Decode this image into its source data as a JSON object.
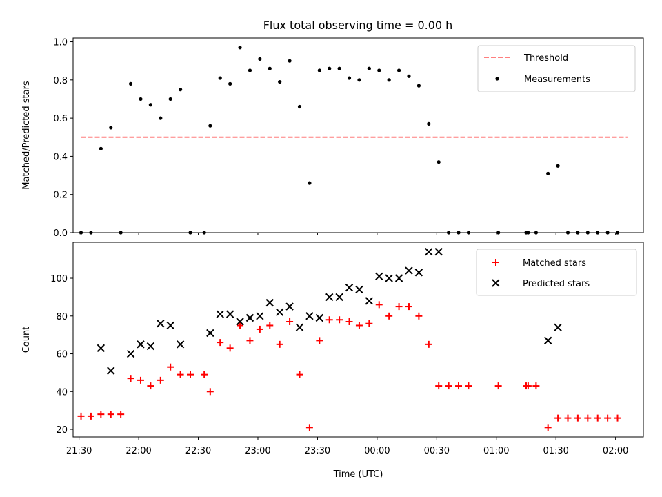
{
  "title": "Flux total observing time = 0.00 h",
  "chart_data": [
    {
      "type": "scatter",
      "ylabel": "Matched/Predicted stars",
      "xlim_min": [
        -3,
        284
      ],
      "ylim": [
        0.0,
        1.02
      ],
      "yticks": [
        "0.0",
        "0.2",
        "0.4",
        "0.6",
        "0.8",
        "1.0"
      ],
      "ytick_values": [
        0.0,
        0.2,
        0.4,
        0.6,
        0.8,
        1.0
      ],
      "legend_position": "top-right",
      "threshold": {
        "name": "Threshold",
        "y": 0.5,
        "x_range_min": [
          1,
          276
        ],
        "color": "#ff7f7f"
      },
      "series": [
        {
          "name": "Measurements",
          "color": "#000000",
          "marker": "dot",
          "points_min": [
            [
              1,
              0.0
            ],
            [
              6,
              0.0
            ],
            [
              11,
              0.44
            ],
            [
              16,
              0.55
            ],
            [
              21,
              0.0
            ],
            [
              26,
              0.78
            ],
            [
              31,
              0.7
            ],
            [
              36,
              0.67
            ],
            [
              41,
              0.6
            ],
            [
              46,
              0.7
            ],
            [
              51,
              0.75
            ],
            [
              56,
              0.0
            ],
            [
              63,
              0.0
            ],
            [
              66,
              0.56
            ],
            [
              71,
              0.81
            ],
            [
              76,
              0.78
            ],
            [
              81,
              0.97
            ],
            [
              86,
              0.85
            ],
            [
              91,
              0.91
            ],
            [
              96,
              0.86
            ],
            [
              101,
              0.79
            ],
            [
              106,
              0.9
            ],
            [
              111,
              0.66
            ],
            [
              116,
              0.26
            ],
            [
              121,
              0.85
            ],
            [
              126,
              0.86
            ],
            [
              131,
              0.86
            ],
            [
              136,
              0.81
            ],
            [
              141,
              0.8
            ],
            [
              146,
              0.86
            ],
            [
              151,
              0.85
            ],
            [
              156,
              0.8
            ],
            [
              161,
              0.85
            ],
            [
              166,
              0.82
            ],
            [
              171,
              0.77
            ],
            [
              176,
              0.57
            ],
            [
              181,
              0.37
            ],
            [
              186,
              0.0
            ],
            [
              191,
              0.0
            ],
            [
              196,
              0.0
            ],
            [
              211,
              0.0
            ],
            [
              225,
              0.0
            ],
            [
              226,
              0.0
            ],
            [
              230,
              0.0
            ],
            [
              236,
              0.31
            ],
            [
              241,
              0.35
            ],
            [
              246,
              0.0
            ],
            [
              251,
              0.0
            ],
            [
              256,
              0.0
            ],
            [
              261,
              0.0
            ],
            [
              266,
              0.0
            ],
            [
              271,
              0.0
            ]
          ]
        }
      ]
    },
    {
      "type": "scatter",
      "xlabel": "Time (UTC)",
      "ylabel": "Count",
      "xlim_min": [
        -3,
        284
      ],
      "ylim": [
        16,
        119
      ],
      "yticks": [
        "20",
        "40",
        "60",
        "80",
        "100"
      ],
      "ytick_values": [
        20,
        40,
        60,
        80,
        100
      ],
      "xtick_values_min": [
        0,
        30,
        60,
        90,
        120,
        150,
        180,
        210,
        240,
        270
      ],
      "xticks": [
        "21:30",
        "22:00",
        "22:30",
        "23:00",
        "23:30",
        "00:00",
        "00:30",
        "01:00",
        "01:30",
        "02:00"
      ],
      "legend_position": "top-right",
      "series": [
        {
          "name": "Matched stars",
          "color": "#ff0000",
          "marker": "plus",
          "points_min": [
            [
              1,
              27
            ],
            [
              6,
              27
            ],
            [
              11,
              28
            ],
            [
              16,
              28
            ],
            [
              21,
              28
            ],
            [
              26,
              47
            ],
            [
              31,
              46
            ],
            [
              36,
              43
            ],
            [
              41,
              46
            ],
            [
              46,
              53
            ],
            [
              51,
              49
            ],
            [
              56,
              49
            ],
            [
              63,
              49
            ],
            [
              66,
              40
            ],
            [
              71,
              66
            ],
            [
              76,
              63
            ],
            [
              81,
              75
            ],
            [
              86,
              67
            ],
            [
              91,
              73
            ],
            [
              96,
              75
            ],
            [
              101,
              65
            ],
            [
              106,
              77
            ],
            [
              111,
              49
            ],
            [
              116,
              21
            ],
            [
              121,
              67
            ],
            [
              126,
              78
            ],
            [
              131,
              78
            ],
            [
              136,
              77
            ],
            [
              141,
              75
            ],
            [
              146,
              76
            ],
            [
              151,
              86
            ],
            [
              156,
              80
            ],
            [
              161,
              85
            ],
            [
              166,
              85
            ],
            [
              171,
              80
            ],
            [
              176,
              65
            ],
            [
              181,
              43
            ],
            [
              186,
              43
            ],
            [
              191,
              43
            ],
            [
              196,
              43
            ],
            [
              211,
              43
            ],
            [
              225,
              43
            ],
            [
              226,
              43
            ],
            [
              230,
              43
            ],
            [
              236,
              21
            ],
            [
              241,
              26
            ],
            [
              246,
              26
            ],
            [
              251,
              26
            ],
            [
              256,
              26
            ],
            [
              261,
              26
            ],
            [
              266,
              26
            ],
            [
              271,
              26
            ]
          ]
        },
        {
          "name": "Predicted stars",
          "color": "#000000",
          "marker": "x",
          "points_min": [
            [
              11,
              63
            ],
            [
              16,
              51
            ],
            [
              26,
              60
            ],
            [
              31,
              65
            ],
            [
              36,
              64
            ],
            [
              41,
              76
            ],
            [
              46,
              75
            ],
            [
              51,
              65
            ],
            [
              66,
              71
            ],
            [
              71,
              81
            ],
            [
              76,
              81
            ],
            [
              81,
              77
            ],
            [
              86,
              79
            ],
            [
              91,
              80
            ],
            [
              96,
              87
            ],
            [
              101,
              82
            ],
            [
              106,
              85
            ],
            [
              111,
              74
            ],
            [
              116,
              80
            ],
            [
              121,
              79
            ],
            [
              126,
              90
            ],
            [
              131,
              90
            ],
            [
              136,
              95
            ],
            [
              141,
              94
            ],
            [
              146,
              88
            ],
            [
              151,
              101
            ],
            [
              156,
              100
            ],
            [
              161,
              100
            ],
            [
              166,
              104
            ],
            [
              171,
              103
            ],
            [
              176,
              114
            ],
            [
              181,
              114
            ],
            [
              236,
              67
            ],
            [
              241,
              74
            ]
          ]
        }
      ]
    }
  ]
}
